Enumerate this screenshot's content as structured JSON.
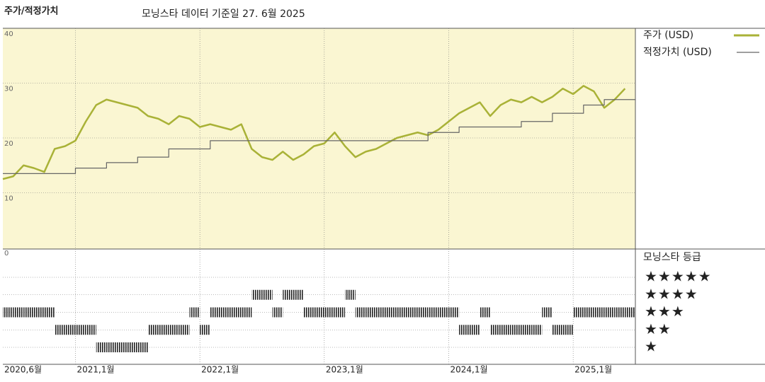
{
  "chart_data": {
    "type": "line",
    "title": "주가/적정가치",
    "subtitle": "모닝스타 데이터 기준일 27. 6월 2025",
    "x": [
      "2020-06",
      "2020-07",
      "2020-08",
      "2020-09",
      "2020-10",
      "2020-11",
      "2020-12",
      "2021-01",
      "2021-02",
      "2021-03",
      "2021-04",
      "2021-05",
      "2021-06",
      "2021-07",
      "2021-08",
      "2021-09",
      "2021-10",
      "2021-11",
      "2021-12",
      "2022-01",
      "2022-02",
      "2022-03",
      "2022-04",
      "2022-05",
      "2022-06",
      "2022-07",
      "2022-08",
      "2022-09",
      "2022-10",
      "2022-11",
      "2022-12",
      "2023-01",
      "2023-02",
      "2023-03",
      "2023-04",
      "2023-05",
      "2023-06",
      "2023-07",
      "2023-08",
      "2023-09",
      "2023-10",
      "2023-11",
      "2023-12",
      "2024-01",
      "2024-02",
      "2024-03",
      "2024-04",
      "2024-05",
      "2024-06",
      "2024-07",
      "2024-08",
      "2024-09",
      "2024-10",
      "2024-11",
      "2024-12",
      "2025-01",
      "2025-02",
      "2025-03",
      "2025-04",
      "2025-05",
      "2025-06"
    ],
    "series": [
      {
        "name": "주가 (USD)",
        "color": "#a9b237",
        "values": [
          12.5,
          13.0,
          15.0,
          14.5,
          13.8,
          18.0,
          18.5,
          19.5,
          23.0,
          26.0,
          27.0,
          26.5,
          26.0,
          25.5,
          24.0,
          23.5,
          22.5,
          24.0,
          23.5,
          22.0,
          22.5,
          22.0,
          21.5,
          22.5,
          18.0,
          16.5,
          16.0,
          17.5,
          16.0,
          17.0,
          18.5,
          19.0,
          21.0,
          18.5,
          16.5,
          17.5,
          18.0,
          19.0,
          20.0,
          20.5,
          21.0,
          20.5,
          21.5,
          23.0,
          24.5,
          25.5,
          26.5,
          24.0,
          26.0,
          27.0,
          26.5,
          27.5,
          26.5,
          27.5,
          29.0,
          28.0,
          29.5,
          28.5,
          25.5,
          27.0,
          29.0
        ]
      },
      {
        "name": "적정가치 (USD)",
        "color": "#666666",
        "values": [
          13.5,
          13.5,
          13.5,
          13.5,
          13.5,
          13.5,
          13.5,
          14.5,
          14.5,
          14.5,
          15.5,
          15.5,
          15.5,
          16.5,
          16.5,
          16.5,
          18,
          18,
          18,
          18,
          19.5,
          19.5,
          19.5,
          19.5,
          19.5,
          19.5,
          19.5,
          19.5,
          19.5,
          19.5,
          19.5,
          19.5,
          19.5,
          19.5,
          19.5,
          19.5,
          19.5,
          19.5,
          19.5,
          19.5,
          19.5,
          21,
          21,
          21,
          22,
          22,
          22,
          22,
          22,
          22,
          23,
          23,
          23,
          24.5,
          24.5,
          24.5,
          26,
          26,
          27,
          27,
          27
        ]
      }
    ],
    "xlim": [
      "2020-06",
      "2025-07"
    ],
    "xticks": [
      {
        "value": "2020-06",
        "label": "2020,6월"
      },
      {
        "value": "2021-01",
        "label": "2021,1월"
      },
      {
        "value": "2022-01",
        "label": "2022,1월"
      },
      {
        "value": "2023-01",
        "label": "2023,1월"
      },
      {
        "value": "2024-01",
        "label": "2024,1월"
      },
      {
        "value": "2025-01",
        "label": "2025,1월"
      }
    ],
    "ylim": [
      0,
      40
    ],
    "yticks": [
      0,
      10,
      20,
      30,
      40
    ],
    "grid": true,
    "ratings": {
      "name": "모닝스타 등급",
      "values": [
        3,
        3,
        3,
        3,
        3,
        2,
        2,
        2,
        2,
        1,
        1,
        1,
        1,
        1,
        2,
        2,
        2,
        2,
        3,
        2,
        3,
        3,
        3,
        3,
        4,
        4,
        3,
        4,
        4,
        3,
        3,
        3,
        3,
        4,
        3,
        3,
        3,
        3,
        3,
        3,
        3,
        3,
        3,
        3,
        2,
        2,
        3,
        2,
        2,
        2,
        2,
        2,
        3,
        2,
        2,
        3,
        3,
        3,
        3,
        3,
        3
      ],
      "levels": [
        {
          "value": 5,
          "label": "★★★★★"
        },
        {
          "value": 4,
          "label": "★★★★"
        },
        {
          "value": 3,
          "label": "★★★"
        },
        {
          "value": 2,
          "label": "★★"
        },
        {
          "value": 1,
          "label": "★"
        }
      ]
    }
  }
}
